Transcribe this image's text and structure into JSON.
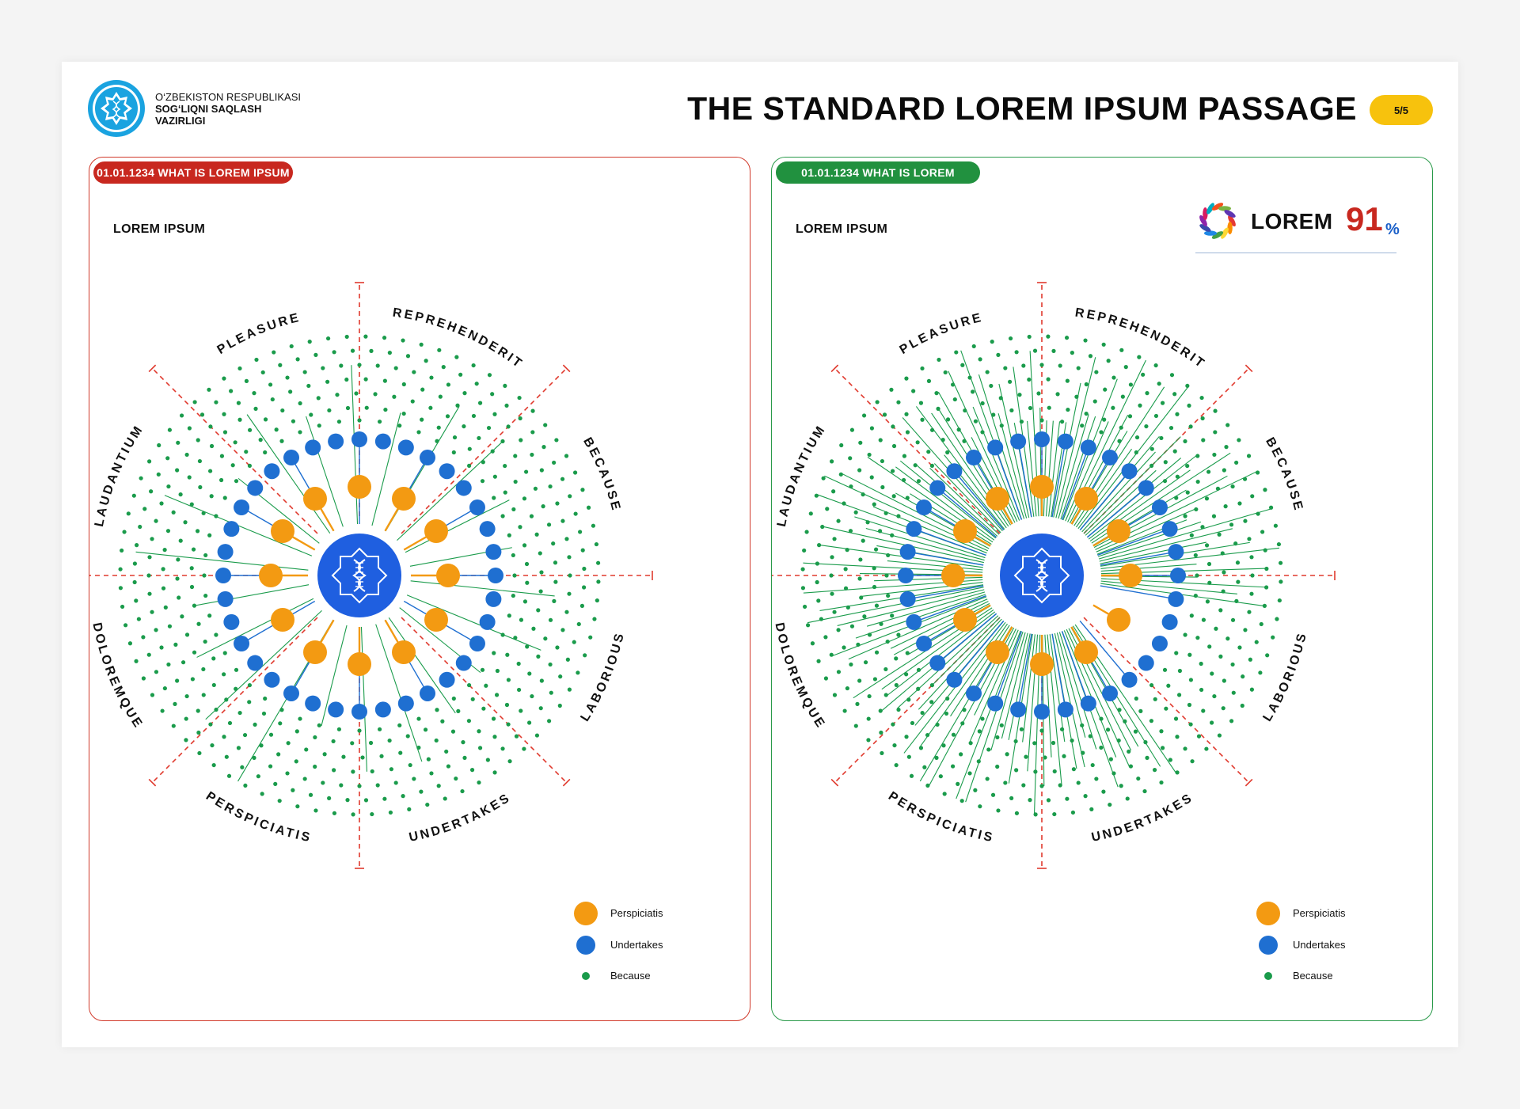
{
  "header": {
    "org_line1": "O‘ZBEKISTON RESPUBLIKASI",
    "org_line2": "SOG‘LIQNI SAQLASH",
    "org_line3": "VAZIRLIGI",
    "title": "THE STANDARD LOREM IPSUM PASSAGE",
    "page_badge": "5/5"
  },
  "panels": [
    {
      "tag": "01.01.1234 WHAT IS LOREM IPSUM",
      "subtitle": "LOREM IPSUM",
      "sector_labels": [
        "REPREHENDERIT",
        "BECAUSE",
        "LABORIOUS",
        "UNDERTAKES",
        "PERSPICIATIS",
        "DOLOREMQUE",
        "LAUDANTIUM",
        "PLEASURE"
      ],
      "connected_outer_fraction": 0.12
    },
    {
      "tag": "01.01.1234 WHAT IS LOREM",
      "subtitle": "LOREM IPSUM",
      "kpi": {
        "label": "LOREM",
        "value": "91",
        "unit": "%"
      },
      "sector_labels": [
        "REPREHENDERIT",
        "BECAUSE",
        "LABORIOUS",
        "UNDERTAKES",
        "PERSPICIATIS",
        "DOLOREMQUE",
        "LAUDANTIUM",
        "PLEASURE"
      ],
      "connected_outer_fraction": 0.91
    }
  ],
  "legend": {
    "items": [
      {
        "label": "Perspiciatis",
        "color": "#f39a12"
      },
      {
        "label": "Undertakes",
        "color": "#1f6fd1"
      },
      {
        "label": "Because",
        "color": "#1a9b4b"
      }
    ]
  },
  "colors": {
    "orange": "#f39a12",
    "blue": "#1f6fd1",
    "green": "#1a9b4b",
    "hub": "#1f5fe0",
    "divider": "#e03a2e"
  }
}
